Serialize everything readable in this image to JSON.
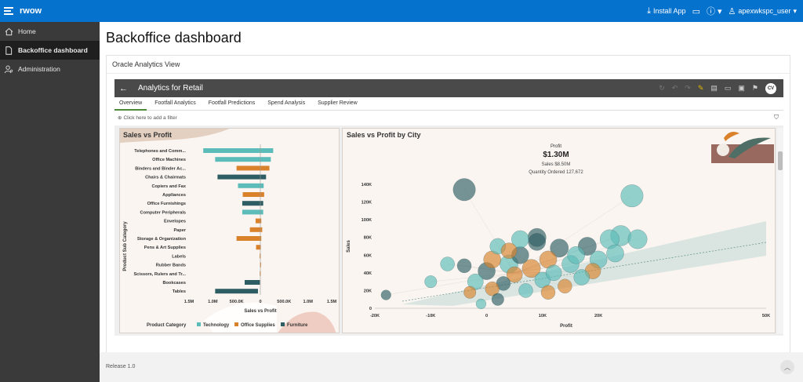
{
  "topbar": {
    "app_name": "rwow",
    "install_label": "Install App",
    "user_name": "apexwkspc_user"
  },
  "sidebar": {
    "items": [
      {
        "label": "Home",
        "icon": "home-icon"
      },
      {
        "label": "Backoffice dashboard",
        "icon": "document-icon"
      },
      {
        "label": "Administration",
        "icon": "user-settings-icon"
      }
    ]
  },
  "page": {
    "title": "Backoffice dashboard",
    "region_title": "Oracle Analytics View",
    "release": "Release 1.0"
  },
  "analytics": {
    "title": "Analytics for Retail",
    "avatar_initials": "CV",
    "tabs": [
      "Overview",
      "Footfall Analytics",
      "Footfall Predictions",
      "Spend Analysis",
      "Supplier Review"
    ],
    "active_tab": "Overview",
    "filter_placeholder": "Click here to add a filter"
  },
  "colors": {
    "accent": "#0572ce",
    "technology": "#5bbcb9",
    "office_supplies": "#d9822b",
    "furniture": "#2e5e63"
  },
  "chart_data": [
    {
      "type": "bar",
      "title": "Sales vs Profit",
      "orientation": "horizontal",
      "ylabel": "Product Sub Category",
      "xlabel": "Sales vs Profit",
      "xlim": [
        -1500000,
        1500000
      ],
      "xticks": [
        "1.5M",
        "1.0M",
        "500.0K",
        "0",
        "500.0K",
        "1.0M",
        "1.5M"
      ],
      "categories": [
        "Telephones and Comm...",
        "Office Machines",
        "Binders and Binder Ac...",
        "Chairs & Chairmats",
        "Copiers and Fax",
        "Appliances",
        "Office Furnishings",
        "Computer Peripherals",
        "Envelopes",
        "Paper",
        "Storage & Organization",
        "Pens & Art Supplies",
        "Labels",
        "Rubber Bands",
        "Scissors, Rulers and Tr...",
        "Bookcases",
        "Tables"
      ],
      "bars": [
        {
          "category": "Telephones and Comm...",
          "start": -1200000,
          "end": 270000,
          "product_category": "Technology"
        },
        {
          "category": "Office Machines",
          "start": -950000,
          "end": 220000,
          "product_category": "Technology"
        },
        {
          "category": "Binders and Binder Ac...",
          "start": -500000,
          "end": 190000,
          "product_category": "Office Supplies"
        },
        {
          "category": "Chairs & Chairmats",
          "start": -900000,
          "end": 120000,
          "product_category": "Furniture"
        },
        {
          "category": "Copiers and Fax",
          "start": -470000,
          "end": 70000,
          "product_category": "Technology"
        },
        {
          "category": "Appliances",
          "start": -370000,
          "end": 80000,
          "product_category": "Office Supplies"
        },
        {
          "category": "Office Furnishings",
          "start": -380000,
          "end": 60000,
          "product_category": "Furniture"
        },
        {
          "category": "Computer Peripherals",
          "start": -380000,
          "end": 60000,
          "product_category": "Technology"
        },
        {
          "category": "Envelopes",
          "start": -100000,
          "end": 20000,
          "product_category": "Office Supplies"
        },
        {
          "category": "Paper",
          "start": -220000,
          "end": 40000,
          "product_category": "Office Supplies"
        },
        {
          "category": "Storage & Organization",
          "start": -500000,
          "end": 20000,
          "product_category": "Office Supplies"
        },
        {
          "category": "Pens & Art Supplies",
          "start": -90000,
          "end": 10000,
          "product_category": "Office Supplies"
        },
        {
          "category": "Labels",
          "start": -15000,
          "end": 5000,
          "product_category": "Office Supplies"
        },
        {
          "category": "Rubber Bands",
          "start": -5000,
          "end": 2000,
          "product_category": "Office Supplies"
        },
        {
          "category": "Scissors, Rulers and Tr...",
          "start": -12000,
          "end": 4000,
          "product_category": "Office Supplies"
        },
        {
          "category": "Bookcases",
          "start": -330000,
          "end": -10000,
          "product_category": "Furniture"
        },
        {
          "category": "Tables",
          "start": -950000,
          "end": -50000,
          "product_category": "Furniture"
        }
      ],
      "legend": {
        "title": "Product Category",
        "entries": [
          "Technology",
          "Office Supplies",
          "Furniture"
        ],
        "placement": "bottom"
      }
    },
    {
      "type": "scatter",
      "title": "Sales vs Profit by City",
      "xlabel": "Profit",
      "ylabel": "Sales",
      "xlim": [
        -20000,
        50000
      ],
      "ylim": [
        0,
        140000
      ],
      "xticks": [
        "-20K",
        "-10K",
        "0",
        "10K",
        "20K",
        "50K"
      ],
      "yticks": [
        "0",
        "20K",
        "40K",
        "60K",
        "80K",
        "100K",
        "120K",
        "140K"
      ],
      "summary": {
        "label": "Profit",
        "value": "$1.30M",
        "sales_label": "Sales",
        "sales_value": "$8.50M",
        "qty_label": "Quantity Ordered",
        "qty_value": "127,672"
      },
      "points": [
        {
          "x": -4000,
          "y": 134000,
          "size": 3000,
          "cat": "Furniture"
        },
        {
          "x": 26000,
          "y": 127000,
          "size": 3000,
          "cat": "Technology"
        },
        {
          "x": -7000,
          "y": 50000,
          "size": 1200,
          "cat": "Technology"
        },
        {
          "x": -18000,
          "y": 15000,
          "size": 600,
          "cat": "Furniture"
        },
        {
          "x": -10000,
          "y": 30000,
          "size": 900,
          "cat": "Technology"
        },
        {
          "x": -4000,
          "y": 48000,
          "size": 1200,
          "cat": "Furniture"
        },
        {
          "x": -2000,
          "y": 30000,
          "size": 1500,
          "cat": "Technology"
        },
        {
          "x": 0,
          "y": 42000,
          "size": 1800,
          "cat": "Furniture"
        },
        {
          "x": 1000,
          "y": 55000,
          "size": 1800,
          "cat": "Office Supplies"
        },
        {
          "x": 2000,
          "y": 70000,
          "size": 1500,
          "cat": "Technology"
        },
        {
          "x": 3000,
          "y": 28000,
          "size": 1200,
          "cat": "Furniture"
        },
        {
          "x": 4000,
          "y": 50000,
          "size": 2000,
          "cat": "Technology"
        },
        {
          "x": 5000,
          "y": 38000,
          "size": 1500,
          "cat": "Office Supplies"
        },
        {
          "x": 6000,
          "y": 60000,
          "size": 1800,
          "cat": "Furniture"
        },
        {
          "x": 7000,
          "y": 20000,
          "size": 1200,
          "cat": "Technology"
        },
        {
          "x": 8000,
          "y": 45000,
          "size": 2000,
          "cat": "Office Supplies"
        },
        {
          "x": 9000,
          "y": 75000,
          "size": 1800,
          "cat": "Furniture"
        },
        {
          "x": 10000,
          "y": 32000,
          "size": 1500,
          "cat": "Technology"
        },
        {
          "x": 11000,
          "y": 55000,
          "size": 1800,
          "cat": "Office Supplies"
        },
        {
          "x": 12000,
          "y": 40000,
          "size": 1500,
          "cat": "Technology"
        },
        {
          "x": 13000,
          "y": 68000,
          "size": 2000,
          "cat": "Furniture"
        },
        {
          "x": 14000,
          "y": 25000,
          "size": 1200,
          "cat": "Office Supplies"
        },
        {
          "x": 15000,
          "y": 50000,
          "size": 1800,
          "cat": "Technology"
        },
        {
          "x": 16000,
          "y": 60000,
          "size": 1800,
          "cat": "Technology"
        },
        {
          "x": 18000,
          "y": 70000,
          "size": 2000,
          "cat": "Furniture"
        },
        {
          "x": 20000,
          "y": 55000,
          "size": 1800,
          "cat": "Technology"
        },
        {
          "x": 22000,
          "y": 78000,
          "size": 2200,
          "cat": "Technology"
        },
        {
          "x": 24000,
          "y": 82000,
          "size": 2500,
          "cat": "Technology"
        },
        {
          "x": 27000,
          "y": 78000,
          "size": 2200,
          "cat": "Technology"
        },
        {
          "x": 19000,
          "y": 42000,
          "size": 1500,
          "cat": "Office Supplies"
        },
        {
          "x": 6000,
          "y": 78000,
          "size": 1800,
          "cat": "Technology"
        },
        {
          "x": 9000,
          "y": 80000,
          "size": 2000,
          "cat": "Furniture"
        },
        {
          "x": 2000,
          "y": 10000,
          "size": 900,
          "cat": "Furniture"
        },
        {
          "x": -1000,
          "y": 5000,
          "size": 600,
          "cat": "Technology"
        },
        {
          "x": 1000,
          "y": 22000,
          "size": 1200,
          "cat": "Office Supplies"
        },
        {
          "x": 17000,
          "y": 35000,
          "size": 1500,
          "cat": "Technology"
        },
        {
          "x": 23000,
          "y": 62000,
          "size": 1800,
          "cat": "Technology"
        },
        {
          "x": 11000,
          "y": 18000,
          "size": 1200,
          "cat": "Office Supplies"
        },
        {
          "x": 4000,
          "y": 65000,
          "size": 1500,
          "cat": "Office Supplies"
        },
        {
          "x": -3000,
          "y": 18000,
          "size": 900,
          "cat": "Office Supplies"
        }
      ]
    }
  ]
}
